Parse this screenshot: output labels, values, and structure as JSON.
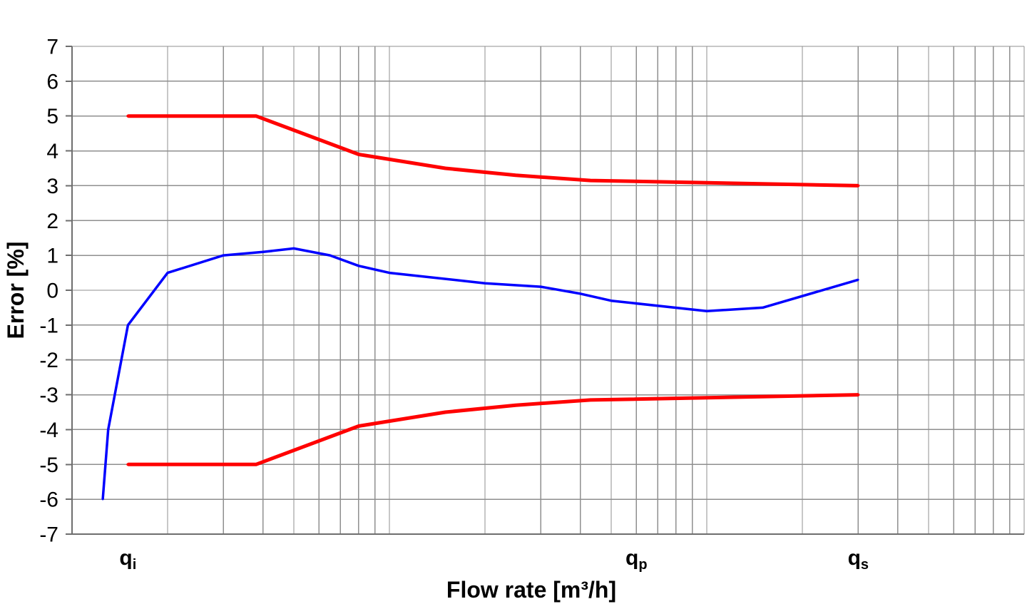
{
  "chart_data": {
    "type": "line",
    "xlabel": "Flow rate [m³/h]",
    "ylabel": "Error [%]",
    "xscale": "log",
    "xlim": [
      1,
      1000
    ],
    "ylim": [
      -7,
      7
    ],
    "grid": true,
    "y_ticks": [
      7,
      6,
      5,
      4,
      3,
      2,
      1,
      0,
      -1,
      -2,
      -3,
      -4,
      -5,
      -6,
      -7
    ],
    "x_ticks": [
      {
        "value": 1.5,
        "label": "q",
        "subscript": "i"
      },
      {
        "value": 60,
        "label": "q",
        "subscript": "p"
      },
      {
        "value": 300,
        "label": "q",
        "subscript": "s"
      }
    ],
    "series": [
      {
        "color": "#ff0000",
        "x": [
          1.5,
          3.8,
          8,
          15,
          25,
          43,
          300
        ],
        "y": [
          5,
          5,
          3.9,
          3.5,
          3.3,
          3.15,
          3
        ]
      },
      {
        "color": "#ff0000",
        "x": [
          1.5,
          3.8,
          8,
          15,
          25,
          43,
          300
        ],
        "y": [
          -5,
          -5,
          -3.9,
          -3.5,
          -3.3,
          -3.15,
          -3
        ]
      },
      {
        "color": "#0000ff",
        "x": [
          1.25,
          1.3,
          1.5,
          2,
          3,
          4,
          5,
          6.5,
          8,
          10,
          20,
          30,
          40,
          50,
          100,
          150,
          300
        ],
        "y": [
          -6,
          -4,
          -1,
          0.5,
          1,
          1.1,
          1.2,
          1,
          0.7,
          0.5,
          0.2,
          0.1,
          -0.1,
          -0.3,
          -0.6,
          -0.5,
          0.3
        ]
      }
    ]
  }
}
